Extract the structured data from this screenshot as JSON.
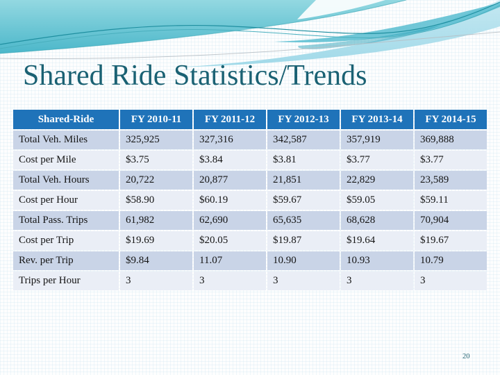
{
  "slide": {
    "title": "Shared Ride Statistics/Trends",
    "page_number": "20"
  },
  "colors": {
    "header_bg": "#1F73B9",
    "header_text": "#FFFFFF",
    "row_band_blue": "#C9D4E7",
    "row_band_light": "#EAEEF6",
    "title_text": "#1A6173",
    "page_number_text": "#1C5F6E",
    "wave_teal_dark": "#4BB7CA",
    "wave_teal_light": "#93D8E1",
    "wave_band_light": "#C2E7F1",
    "wave_band_mid": "#9BD7E7",
    "wave_accent": "#58BDD0",
    "wave_line": "#1F8FA0"
  },
  "table": {
    "columns": [
      "Shared-Ride",
      "FY 2010-11",
      "FY 2011-12",
      "FY 2012-13",
      "FY 2013-14",
      "FY 2014-15"
    ],
    "rows": [
      {
        "label": "Total Veh. Miles",
        "values": [
          "325,925",
          "327,316",
          "342,587",
          "357,919",
          "369,888"
        ]
      },
      {
        "label": "Cost per Mile",
        "values": [
          "$3.75",
          "$3.84",
          "$3.81",
          "$3.77",
          "$3.77"
        ]
      },
      {
        "label": "Total Veh. Hours",
        "values": [
          "20,722",
          "20,877",
          "21,851",
          "22,829",
          "23,589"
        ]
      },
      {
        "label": "Cost per Hour",
        "values": [
          "$58.90",
          "$60.19",
          "$59.67",
          "$59.05",
          "$59.11"
        ]
      },
      {
        "label": "Total Pass. Trips",
        "values": [
          "61,982",
          "62,690",
          "65,635",
          "68,628",
          "70,904"
        ]
      },
      {
        "label": "Cost per Trip",
        "values": [
          "$19.69",
          "$20.05",
          "$19.87",
          "$19.64",
          "$19.67"
        ]
      },
      {
        "label": "Rev. per Trip",
        "values": [
          "$9.84",
          "11.07",
          "10.90",
          "10.93",
          "10.79"
        ]
      },
      {
        "label": "Trips per Hour",
        "values": [
          "3",
          "3",
          "3",
          "3",
          "3"
        ]
      }
    ]
  }
}
